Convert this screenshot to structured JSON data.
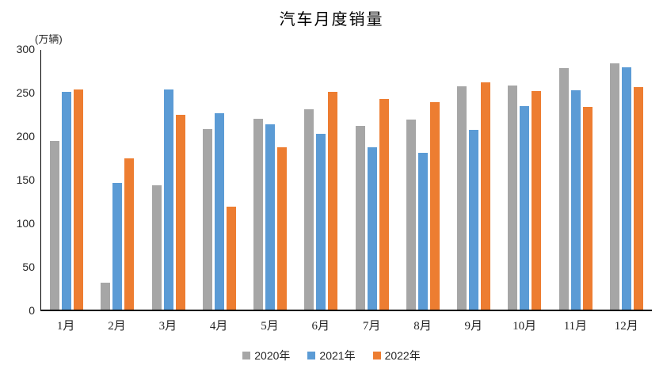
{
  "title": "汽车月度销量",
  "unit_label": "(万辆)",
  "chart_data": {
    "type": "bar",
    "title": "汽车月度销量",
    "ylabel": "(万辆)",
    "xlabel": "",
    "categories": [
      "1月",
      "2月",
      "3月",
      "4月",
      "5月",
      "6月",
      "7月",
      "8月",
      "9月",
      "10月",
      "11月",
      "12月"
    ],
    "series": [
      {
        "name": "2020年",
        "color": "#A6A6A6",
        "values": [
          194.1,
          31.0,
          143.0,
          207.0,
          219.4,
          230.0,
          211.2,
          218.6,
          256.5,
          257.3,
          277.0,
          283.1
        ]
      },
      {
        "name": "2021年",
        "color": "#5B9BD5",
        "values": [
          250.3,
          145.5,
          252.6,
          225.2,
          212.8,
          201.5,
          186.4,
          179.9,
          206.7,
          233.3,
          252.2,
          278.6
        ]
      },
      {
        "name": "2022年",
        "color": "#ED7D31",
        "values": [
          253.1,
          173.7,
          223.4,
          118.1,
          186.2,
          250.2,
          242.0,
          238.3,
          261.0,
          250.5,
          232.8,
          255.6
        ]
      }
    ],
    "ylim": [
      0,
      300
    ],
    "yticks": [
      0,
      50,
      100,
      150,
      200,
      250,
      300
    ],
    "grid": false,
    "legend_position": "bottom"
  },
  "colors": {
    "axis_line": "#000000",
    "tick_text": "#262626",
    "background": "#ffffff"
  }
}
